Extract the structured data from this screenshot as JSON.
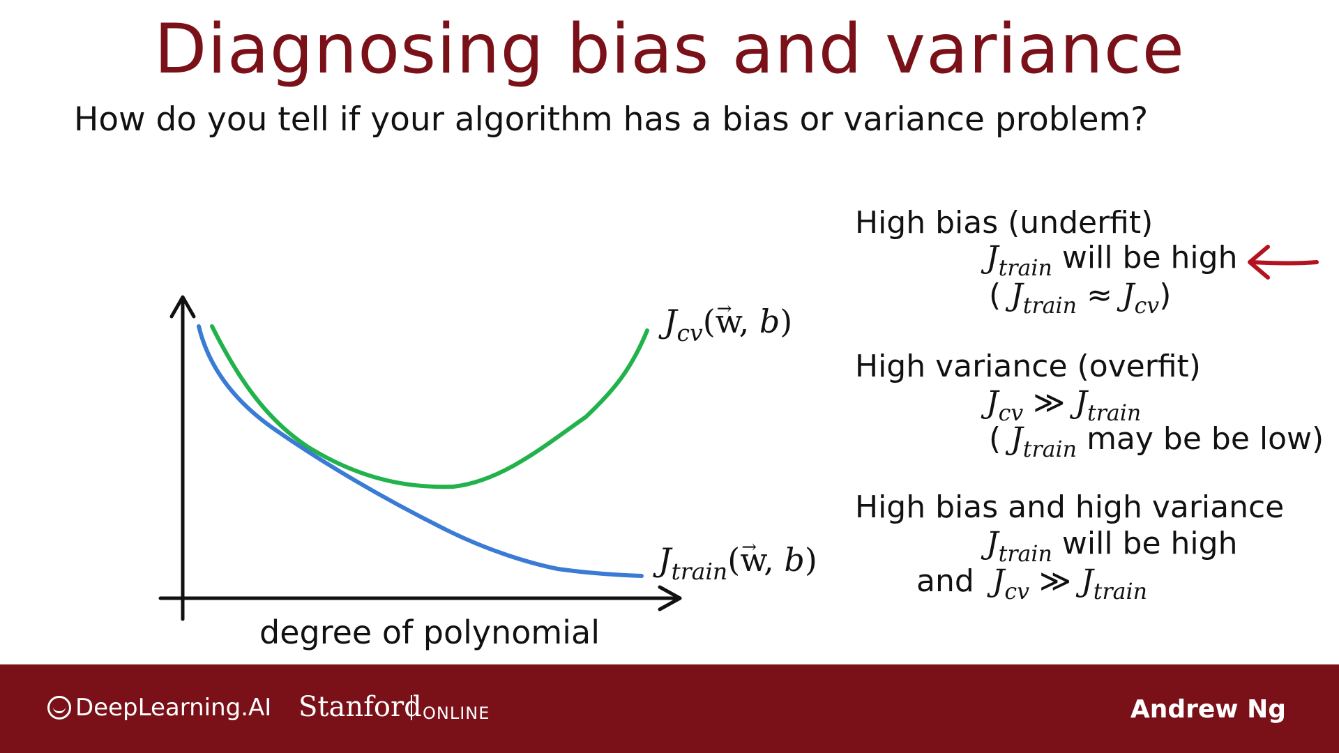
{
  "slide": {
    "title": "Diagnosing bias and variance",
    "subtitle": "How do you tell if your algorithm has a bias or variance problem?"
  },
  "chart": {
    "x_axis_label": "degree of polynomial",
    "cv_label": {
      "J": "J",
      "sub": "cv",
      "args_open": "(",
      "w": "w",
      "comma": ", ",
      "b": "b",
      "args_close": ")"
    },
    "train_label": {
      "J": "J",
      "sub": "train",
      "args_open": "(",
      "w": "w",
      "comma": ", ",
      "b": "b",
      "args_close": ")"
    },
    "colors": {
      "cv_curve": "#22b24c",
      "train_curve": "#3a7bd5",
      "axes": "#111111"
    }
  },
  "notes": {
    "high_bias": {
      "heading": "High bias (underfit)",
      "line1_J": "J",
      "line1_sub": "train",
      "line1_text": " will be high",
      "line2_open": "( ",
      "line2_J1": "J",
      "line2_sub1": "train",
      "line2_op": " ≈ ",
      "line2_J2": "J",
      "line2_sub2": "cv",
      "line2_close": ")"
    },
    "high_variance": {
      "heading": "High variance (overfit)",
      "line1_J1": "J",
      "line1_sub1": "cv",
      "line1_op": " ≫ ",
      "line1_J2": "J",
      "line1_sub2": "train",
      "line2_open": "( ",
      "line2_J": "J",
      "line2_sub": "train",
      "line2_text": " may be be low)"
    },
    "both": {
      "heading": "High bias and high variance",
      "line1_J": "J",
      "line1_sub": "train",
      "line1_text": " will be high",
      "line2_and": "and",
      "line2_J1": "J",
      "line2_sub1": "cv",
      "line2_op": " ≫ ",
      "line2_J2": "J",
      "line2_sub2": "train"
    },
    "arrow_color": "#b3121f"
  },
  "footer": {
    "brand_deeplearning": "DeepLearning.AI",
    "brand_stanford": "Stanford",
    "brand_online": "ONLINE",
    "presenter": "Andrew Ng",
    "background": "#7a1119"
  }
}
